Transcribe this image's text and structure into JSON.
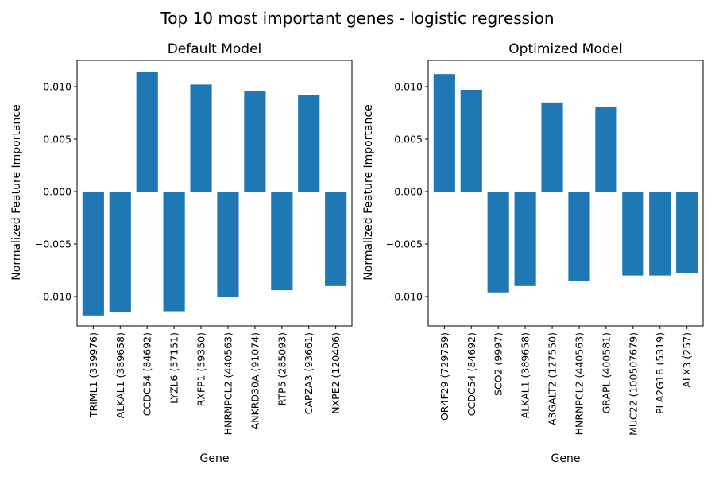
{
  "suptitle": "Top 10 most important genes - logistic regression",
  "chart_data": [
    {
      "type": "bar",
      "title": "Default Model",
      "xlabel": "Gene",
      "ylabel": "Normalized Feature Importance",
      "ylim": [
        -0.0128,
        0.0125
      ],
      "yticks": [
        "0.010",
        "0.005",
        "0.000",
        "−0.005",
        "−0.010"
      ],
      "ytick_values": [
        0.01,
        0.005,
        0,
        -0.005,
        -0.01
      ],
      "bar_color": "#1f77b4",
      "grid": false,
      "categories": [
        "TRIML1 (339976)",
        "ALKAL1 (389658)",
        "CCDC54 (84692)",
        "LYZL6 (57151)",
        "RXFP1 (59350)",
        "HNRNPCL2 (440563)",
        "ANKRD30A (91074)",
        "RTP5 (285093)",
        "CAPZA3 (93661)",
        "NXPE2 (120406)"
      ],
      "values": [
        -0.0118,
        -0.0115,
        0.0114,
        -0.0114,
        0.0102,
        -0.01,
        0.0096,
        -0.0094,
        0.0092,
        -0.009
      ]
    },
    {
      "type": "bar",
      "title": "Optimized Model",
      "xlabel": "Gene",
      "ylabel": "Normalized Feature Importance",
      "ylim": [
        -0.0128,
        0.0125
      ],
      "yticks": [
        "0.010",
        "0.005",
        "0.000",
        "−0.005",
        "−0.010"
      ],
      "ytick_values": [
        0.01,
        0.005,
        0,
        -0.005,
        -0.01
      ],
      "bar_color": "#1f77b4",
      "grid": false,
      "categories": [
        "OR4F29 (729759)",
        "CCDC54 (84692)",
        "SCO2 (9997)",
        "ALKAL1 (389658)",
        "A3GALT2 (127550)",
        "HNRNPCL2 (440563)",
        "GRAPL (400581)",
        "MUC22 (100507679)",
        "PLA2G1B (5319)",
        "ALX3 (257)"
      ],
      "values": [
        0.0112,
        0.0097,
        -0.0096,
        -0.009,
        0.0085,
        -0.0085,
        0.0081,
        -0.008,
        -0.008,
        -0.0078
      ]
    }
  ]
}
